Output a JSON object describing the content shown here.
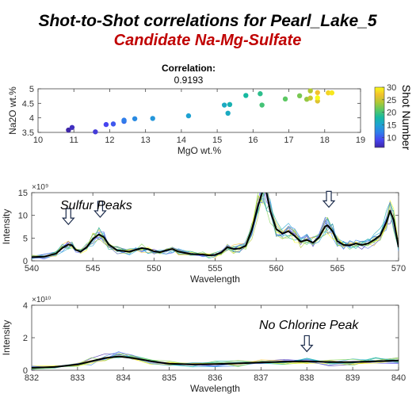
{
  "title": "Shot-to-Shot correlations for Pearl_Lake_5",
  "subtitle": "Candidate Na-Mg-Sulfate",
  "chart_data": [
    {
      "type": "scatter",
      "xlabel": "MgO wt.%",
      "ylabel": "Na2O wt.%",
      "xlim": [
        10,
        19
      ],
      "ylim": [
        3.5,
        5
      ],
      "xticks": [
        "10",
        "11",
        "12",
        "13",
        "14",
        "15",
        "16",
        "17",
        "18",
        "19"
      ],
      "yticks": [
        "3.5",
        "4",
        "4.5",
        "5"
      ],
      "correlation_label": "Correlation:",
      "correlation_value": "0.9193",
      "colorbar_label": "Shot Number",
      "colorbar_ticks": [
        "10",
        "15",
        "20",
        "25",
        "30"
      ],
      "colorbar_range": [
        6,
        30
      ],
      "colormap": [
        "#3e26a8",
        "#4745f0",
        "#2f7eea",
        "#1ea2d2",
        "#16b9a0",
        "#5cc863",
        "#b2c833",
        "#f2c02e",
        "#f9fb15"
      ],
      "points": [
        {
          "x": 10.85,
          "y": 3.58,
          "c": 6
        },
        {
          "x": 10.95,
          "y": 3.67,
          "c": 7
        },
        {
          "x": 11.6,
          "y": 3.52,
          "c": 8
        },
        {
          "x": 11.9,
          "y": 3.77,
          "c": 9
        },
        {
          "x": 12.1,
          "y": 3.79,
          "c": 10
        },
        {
          "x": 12.4,
          "y": 3.88,
          "c": 11
        },
        {
          "x": 12.4,
          "y": 3.92,
          "c": 12
        },
        {
          "x": 12.7,
          "y": 3.97,
          "c": 13
        },
        {
          "x": 13.2,
          "y": 3.98,
          "c": 14
        },
        {
          "x": 14.2,
          "y": 4.07,
          "c": 15
        },
        {
          "x": 15.2,
          "y": 4.44,
          "c": 16
        },
        {
          "x": 15.3,
          "y": 4.16,
          "c": 16
        },
        {
          "x": 15.35,
          "y": 4.46,
          "c": 17
        },
        {
          "x": 15.8,
          "y": 4.77,
          "c": 18
        },
        {
          "x": 16.2,
          "y": 4.83,
          "c": 19
        },
        {
          "x": 16.25,
          "y": 4.44,
          "c": 20
        },
        {
          "x": 16.9,
          "y": 4.65,
          "c": 21
        },
        {
          "x": 17.3,
          "y": 4.76,
          "c": 22
        },
        {
          "x": 17.5,
          "y": 4.64,
          "c": 23
        },
        {
          "x": 17.6,
          "y": 4.93,
          "c": 24
        },
        {
          "x": 17.6,
          "y": 4.68,
          "c": 25
        },
        {
          "x": 17.8,
          "y": 4.58,
          "c": 26
        },
        {
          "x": 17.8,
          "y": 4.87,
          "c": 27
        },
        {
          "x": 18.1,
          "y": 4.86,
          "c": 28
        },
        {
          "x": 18.2,
          "y": 4.86,
          "c": 29
        },
        {
          "x": 17.8,
          "y": 4.69,
          "c": 30
        }
      ]
    },
    {
      "type": "line",
      "xlabel": "Wavelength",
      "ylabel": "Intensity",
      "xlim": [
        540,
        570
      ],
      "ylim": [
        0,
        15
      ],
      "exponent_label": "×10⁹",
      "xticks": [
        "540",
        "545",
        "550",
        "555",
        "560",
        "565",
        "570"
      ],
      "yticks": [
        "0",
        "5",
        "10",
        "15"
      ],
      "annotation": "Sulfur Peaks",
      "arrows_at": [
        {
          "x": 543.0,
          "y": 8.0
        },
        {
          "x": 545.6,
          "y": 9.6
        },
        {
          "x": 564.3,
          "y": 11.8
        }
      ],
      "mean_series": {
        "x": [
          540,
          541,
          542,
          542.5,
          543,
          543.3,
          543.6,
          544,
          544.5,
          545,
          545.5,
          545.9,
          546.3,
          547,
          548,
          548.5,
          549,
          549.5,
          550,
          550.5,
          551,
          551.5,
          552,
          553,
          554,
          554.5,
          555,
          555.5,
          556,
          556.5,
          557,
          557.5,
          558,
          558.5,
          558.9,
          559.2,
          559.5,
          560,
          560.5,
          561,
          561.5,
          562,
          562.5,
          563,
          563.5,
          564,
          564.2,
          564.6,
          565,
          565.5,
          566,
          566.5,
          567,
          567.5,
          568,
          568.5,
          569,
          569.3,
          569.6,
          570
        ],
        "y": [
          0.8,
          0.9,
          1.6,
          2.8,
          3.6,
          3.4,
          2.4,
          2.0,
          3.0,
          4.8,
          5.8,
          5.2,
          3.6,
          2.3,
          2.0,
          2.4,
          2.8,
          2.6,
          2.1,
          1.9,
          2.3,
          2.6,
          2.0,
          1.5,
          1.4,
          1.2,
          1.3,
          1.8,
          3.0,
          2.6,
          2.7,
          3.3,
          6.8,
          12.0,
          15.5,
          15.0,
          11.0,
          7.0,
          6.0,
          6.5,
          5.5,
          4.2,
          4.6,
          4.0,
          5.2,
          7.6,
          7.8,
          6.5,
          4.3,
          3.5,
          3.4,
          3.8,
          3.5,
          3.8,
          4.6,
          5.6,
          8.5,
          11.0,
          9.0,
          3.0
        ]
      }
    },
    {
      "type": "line",
      "xlabel": "Wavelength",
      "ylabel": "Intensity",
      "xlim": [
        832,
        840
      ],
      "ylim": [
        0,
        4
      ],
      "exponent_label": "×10¹⁰",
      "xticks": [
        "832",
        "833",
        "834",
        "835",
        "836",
        "837",
        "838",
        "839",
        "840"
      ],
      "yticks": [
        "0",
        "2",
        "4"
      ],
      "annotation": "No Chlorine Peak",
      "arrows_at": [
        {
          "x": 838.0,
          "y": 1.15
        }
      ],
      "mean_series": {
        "x": [
          832,
          832.5,
          833,
          833.3,
          833.6,
          833.9,
          834.2,
          834.6,
          835,
          835.5,
          836,
          836.5,
          837,
          837.5,
          838,
          838.5,
          839,
          839.5,
          840
        ],
        "y": [
          0.15,
          0.2,
          0.35,
          0.55,
          0.75,
          0.85,
          0.75,
          0.55,
          0.4,
          0.35,
          0.38,
          0.42,
          0.48,
          0.52,
          0.55,
          0.5,
          0.5,
          0.55,
          0.6
        ]
      }
    }
  ]
}
